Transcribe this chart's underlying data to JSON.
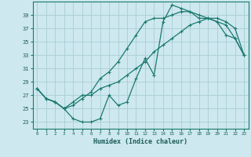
{
  "xlabel": "Humidex (Indice chaleur)",
  "bg_color": "#cde8ee",
  "grid_color": "#aacdd6",
  "line_color": "#1a7a6e",
  "xlim": [
    -0.5,
    23.5
  ],
  "ylim": [
    22,
    41
  ],
  "yticks": [
    23,
    25,
    27,
    29,
    31,
    33,
    35,
    37,
    39
  ],
  "xticks": [
    0,
    1,
    2,
    3,
    4,
    5,
    6,
    7,
    8,
    9,
    10,
    11,
    12,
    13,
    14,
    15,
    16,
    17,
    18,
    19,
    20,
    21,
    22,
    23
  ],
  "series1_x": [
    0,
    1,
    2,
    3,
    4,
    5,
    6,
    7,
    8,
    9,
    10,
    11,
    12,
    13,
    14,
    15,
    16,
    17,
    18,
    19,
    20,
    21,
    22,
    23
  ],
  "series1_y": [
    28,
    26.5,
    26,
    25,
    23.5,
    23,
    23,
    23.5,
    27,
    25.5,
    26,
    29.5,
    32.5,
    30,
    38,
    40.5,
    40,
    39.5,
    39,
    38.5,
    38,
    37.5,
    35.5,
    33
  ],
  "series2_x": [
    0,
    1,
    2,
    3,
    4,
    5,
    6,
    7,
    8,
    9,
    10,
    11,
    12,
    13,
    14,
    15,
    16,
    17,
    18,
    19,
    20,
    21,
    22,
    23
  ],
  "series2_y": [
    28,
    26.5,
    26,
    25,
    26,
    27,
    27,
    28,
    28.5,
    29,
    30,
    31,
    32,
    33.5,
    34.5,
    35.5,
    36.5,
    37.5,
    38,
    38.5,
    38.5,
    38,
    37,
    33
  ],
  "series3_x": [
    0,
    1,
    2,
    3,
    4,
    5,
    6,
    7,
    8,
    9,
    10,
    11,
    12,
    13,
    14,
    15,
    16,
    17,
    18,
    19,
    20,
    21,
    22,
    23
  ],
  "series3_y": [
    28,
    26.5,
    26,
    25,
    25.5,
    26.5,
    27.5,
    29.5,
    30.5,
    32,
    34,
    36,
    38,
    38.5,
    38.5,
    39,
    39.5,
    39.5,
    38.5,
    38.5,
    38,
    36,
    35.5,
    33
  ]
}
